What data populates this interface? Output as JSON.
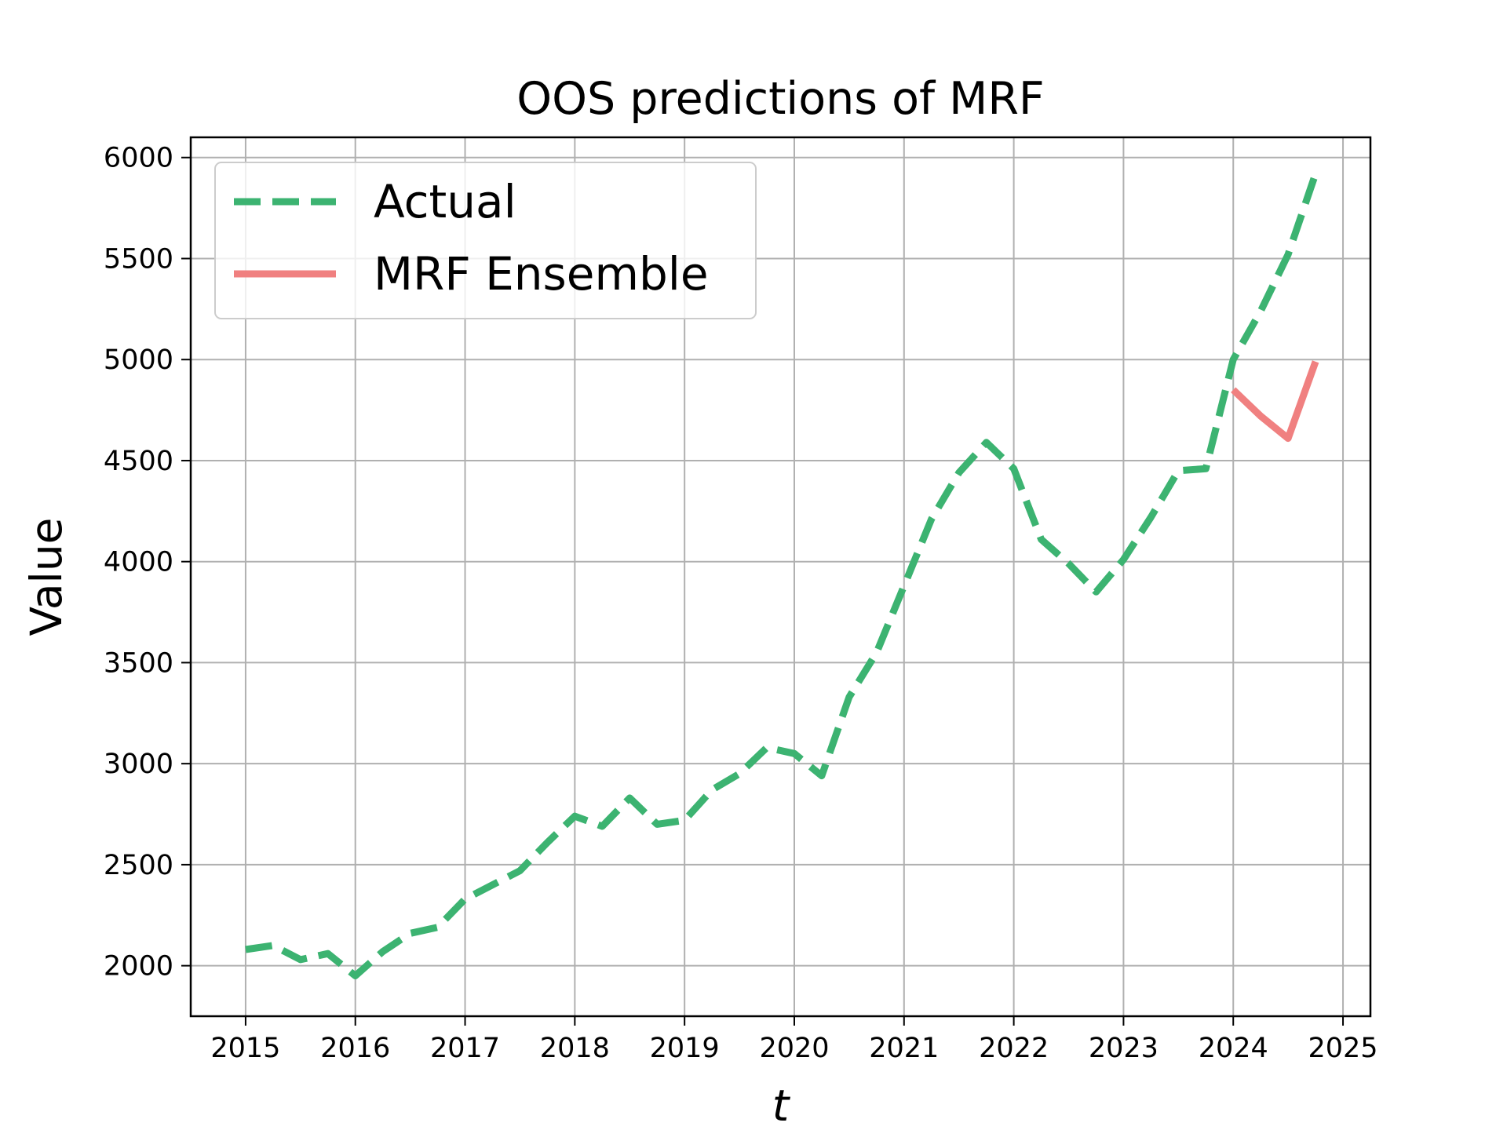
{
  "chart_data": {
    "type": "line",
    "title": "OOS predictions of MRF",
    "xlabel": "t",
    "ylabel": "Value",
    "xlim": [
      2014.5,
      2025.25
    ],
    "ylim": [
      1750,
      6100
    ],
    "x_ticks": [
      2015,
      2016,
      2017,
      2018,
      2019,
      2020,
      2021,
      2022,
      2023,
      2024,
      2025
    ],
    "y_ticks": [
      2000,
      2500,
      3000,
      3500,
      4000,
      4500,
      5000,
      5500,
      6000
    ],
    "grid": true,
    "legend": {
      "position": "top-left"
    },
    "colors": {
      "actual": "#3cb371",
      "mrf": "#f08080"
    },
    "series": [
      {
        "name": "Actual",
        "style": "dashed",
        "color": "#3cb371",
        "x": [
          2015.0,
          2015.25,
          2015.5,
          2015.75,
          2016.0,
          2016.25,
          2016.5,
          2016.75,
          2017.0,
          2017.25,
          2017.5,
          2017.75,
          2018.0,
          2018.25,
          2018.5,
          2018.75,
          2019.0,
          2019.25,
          2019.5,
          2019.75,
          2020.0,
          2020.25,
          2020.5,
          2020.75,
          2021.0,
          2021.25,
          2021.5,
          2021.75,
          2022.0,
          2022.25,
          2022.5,
          2022.75,
          2023.0,
          2023.25,
          2023.5,
          2023.75,
          2024.0,
          2024.25,
          2024.5,
          2024.75
        ],
        "values": [
          2080,
          2100,
          2030,
          2060,
          1950,
          2070,
          2160,
          2190,
          2330,
          2400,
          2470,
          2610,
          2740,
          2690,
          2830,
          2700,
          2720,
          2870,
          2950,
          3080,
          3050,
          2940,
          3330,
          3550,
          3880,
          4210,
          4440,
          4590,
          4460,
          4110,
          3990,
          3850,
          4010,
          4220,
          4450,
          4460,
          5000,
          5240,
          5520,
          5920
        ]
      },
      {
        "name": "MRF Ensemble",
        "style": "solid",
        "color": "#f08080",
        "x": [
          2024.0,
          2024.25,
          2024.5,
          2024.75
        ],
        "values": [
          4850,
          4720,
          4610,
          4990
        ]
      }
    ]
  }
}
